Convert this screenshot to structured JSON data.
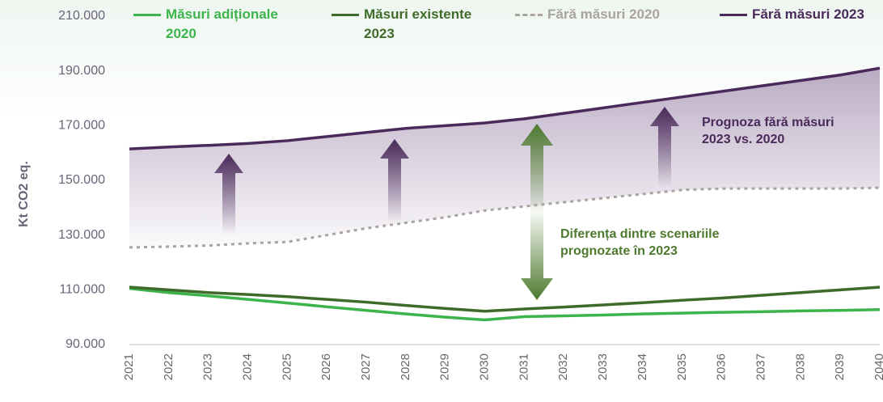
{
  "chart_data": {
    "type": "line",
    "y_label": "Kt CO2 eq.",
    "categories": [
      "2021",
      "2022",
      "2023",
      "2024",
      "2025",
      "2026",
      "2027",
      "2028",
      "2029",
      "2030",
      "2031",
      "2032",
      "2033",
      "2034",
      "2035",
      "2036",
      "2037",
      "2038",
      "2039",
      "2040"
    ],
    "ylim": [
      90000,
      210000
    ],
    "yticks": [
      {
        "value": 90000,
        "label": "90.000"
      },
      {
        "value": 110000,
        "label": "110.000"
      },
      {
        "value": 130000,
        "label": "130.000"
      },
      {
        "value": 150000,
        "label": "150.000"
      },
      {
        "value": 170000,
        "label": "170.000"
      },
      {
        "value": 190000,
        "label": "190.000"
      },
      {
        "value": 210000,
        "label": "210.000"
      }
    ],
    "series": [
      {
        "name": "Măsuri adiționale 2020",
        "color": "#3cb44b",
        "dash": false,
        "values": [
          110500,
          109000,
          107800,
          106500,
          105200,
          103800,
          102500,
          101200,
          100000,
          99000,
          100200,
          100500,
          100800,
          101200,
          101500,
          101800,
          102000,
          102300,
          102500,
          102800
        ]
      },
      {
        "name": "Măsuri existente 2023",
        "color": "#3f6b2a",
        "dash": false,
        "values": [
          111000,
          110000,
          109000,
          108300,
          107500,
          106500,
          105500,
          104300,
          103200,
          102200,
          103000,
          103700,
          104500,
          105300,
          106200,
          107000,
          108000,
          109000,
          110000,
          111000
        ]
      },
      {
        "name": "Fără măsuri 2020",
        "color": "#aaa3a0",
        "dash": true,
        "values": [
          125500,
          125800,
          126200,
          127000,
          127500,
          130000,
          132500,
          134500,
          136500,
          139000,
          140500,
          142000,
          143500,
          145000,
          146500,
          147000,
          147000,
          147000,
          147000,
          147300
        ]
      },
      {
        "name": "Fără măsuri 2023",
        "color": "#4a2a5a",
        "dash": false,
        "values": [
          161500,
          162200,
          162800,
          163500,
          164500,
          166000,
          167500,
          169000,
          170000,
          171000,
          172500,
          174500,
          176500,
          178500,
          180500,
          182500,
          184500,
          186500,
          188500,
          191000
        ]
      }
    ],
    "annotations": [
      {
        "lines": [
          "Prognoza fără măsuri",
          "2023 vs. 2020"
        ],
        "color": "#4a2a5a"
      },
      {
        "lines": [
          "Diferența dintre scenariile",
          "prognozate în 2023"
        ],
        "color": "#4e7a2e"
      }
    ]
  }
}
